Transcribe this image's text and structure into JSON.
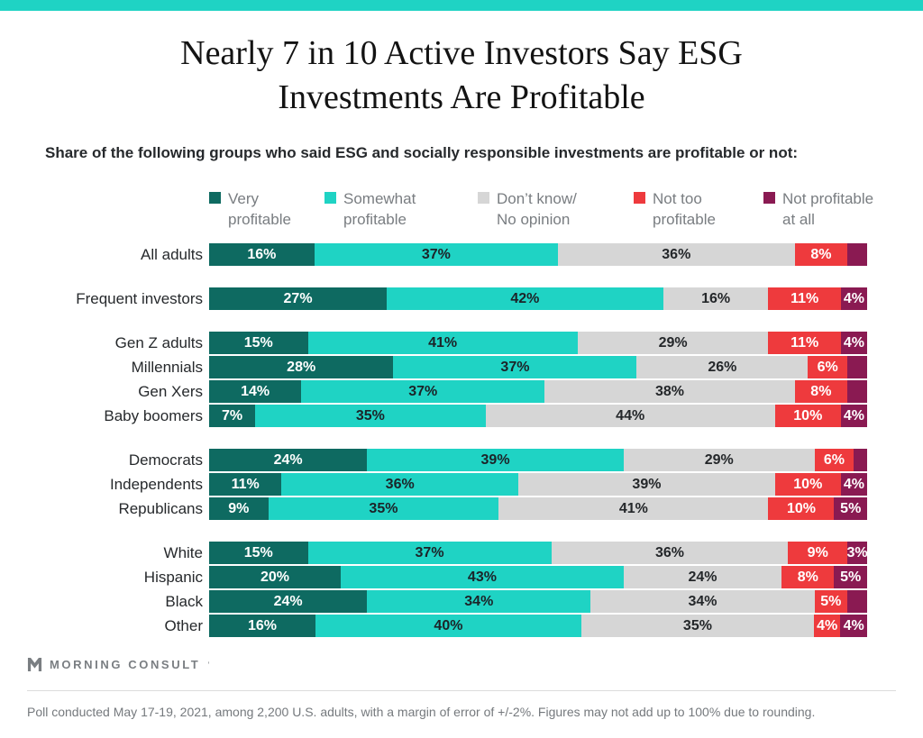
{
  "page": {
    "accent_color": "#1fd3c4",
    "title_line1": "Nearly 7 in 10 Active Investors Say ESG",
    "title_line2": "Investments Are Profitable",
    "subtitle": "Share of the following groups who said ESG and socially responsible investments are profitable or not:"
  },
  "legend": {
    "items": [
      {
        "label": "Very\nprofitable",
        "color": "#0e6a61"
      },
      {
        "label": "Somewhat\nprofitable",
        "color": "#1fd3c4"
      },
      {
        "label": "Don’t know/\nNo opinion",
        "color": "#d6d6d6"
      },
      {
        "label": "Not too\nprofitable",
        "color": "#ee3a3d"
      },
      {
        "label": "Not profitable\nat all",
        "color": "#8a1a52"
      }
    ]
  },
  "chart_data": {
    "type": "bar",
    "orientation": "horizontal",
    "stacked": true,
    "unit": "%",
    "xlim": [
      0,
      100
    ],
    "grid": false,
    "legend_position": "top",
    "series_names": [
      "Very profitable",
      "Somewhat profitable",
      "Don't know/No opinion",
      "Not too profitable",
      "Not profitable at all"
    ],
    "series_colors": [
      "#0e6a61",
      "#1fd3c4",
      "#d6d6d6",
      "#ee3a3d",
      "#8a1a52"
    ],
    "label_text_colors": [
      "#ffffff",
      "#1c2328",
      "#24272a",
      "#ffffff",
      "#ffffff"
    ],
    "groups": [
      {
        "rows": [
          {
            "category": "All adults",
            "values": [
              16,
              37,
              36,
              8,
              3
            ],
            "labels": [
              "16%",
              "37%",
              "36%",
              "8%",
              ""
            ]
          }
        ]
      },
      {
        "rows": [
          {
            "category": "Frequent investors",
            "values": [
              27,
              42,
              16,
              11,
              4
            ],
            "labels": [
              "27%",
              "42%",
              "16%",
              "11%",
              "4%"
            ]
          }
        ]
      },
      {
        "rows": [
          {
            "category": "Gen Z adults",
            "values": [
              15,
              41,
              29,
              11,
              4
            ],
            "labels": [
              "15%",
              "41%",
              "29%",
              "11%",
              "4%"
            ]
          },
          {
            "category": "Millennials",
            "values": [
              28,
              37,
              26,
              6,
              3
            ],
            "labels": [
              "28%",
              "37%",
              "26%",
              "6%",
              ""
            ]
          },
          {
            "category": "Gen Xers",
            "values": [
              14,
              37,
              38,
              8,
              3
            ],
            "labels": [
              "14%",
              "37%",
              "38%",
              "8%",
              ""
            ]
          },
          {
            "category": "Baby boomers",
            "values": [
              7,
              35,
              44,
              10,
              4
            ],
            "labels": [
              "7%",
              "35%",
              "44%",
              "10%",
              "4%"
            ]
          }
        ]
      },
      {
        "rows": [
          {
            "category": "Democrats",
            "values": [
              24,
              39,
              29,
              6,
              2
            ],
            "labels": [
              "24%",
              "39%",
              "29%",
              "6%",
              ""
            ]
          },
          {
            "category": "Independents",
            "values": [
              11,
              36,
              39,
              10,
              4
            ],
            "labels": [
              "11%",
              "36%",
              "39%",
              "10%",
              "4%"
            ]
          },
          {
            "category": "Republicans",
            "values": [
              9,
              35,
              41,
              10,
              5
            ],
            "labels": [
              "9%",
              "35%",
              "41%",
              "10%",
              "5%"
            ]
          }
        ]
      },
      {
        "rows": [
          {
            "category": "White",
            "values": [
              15,
              37,
              36,
              9,
              3
            ],
            "labels": [
              "15%",
              "37%",
              "36%",
              "9%",
              "3%"
            ]
          },
          {
            "category": "Hispanic",
            "values": [
              20,
              43,
              24,
              8,
              5
            ],
            "labels": [
              "20%",
              "43%",
              "24%",
              "8%",
              "5%"
            ]
          },
          {
            "category": "Black",
            "values": [
              24,
              34,
              34,
              5,
              3
            ],
            "labels": [
              "24%",
              "34%",
              "34%",
              "5%",
              ""
            ]
          },
          {
            "category": "Other",
            "values": [
              16,
              40,
              35,
              4,
              4
            ],
            "labels": [
              "16%",
              "40%",
              "35%",
              "4%",
              "4%"
            ]
          }
        ]
      }
    ]
  },
  "footer": {
    "logo_text": "MORNING CONSULT",
    "logo_tm": "’",
    "note": "Poll conducted May 17-19, 2021, among 2,200 U.S. adults, with a margin of error of +/-2%. Figures may not add up to 100% due to rounding."
  }
}
